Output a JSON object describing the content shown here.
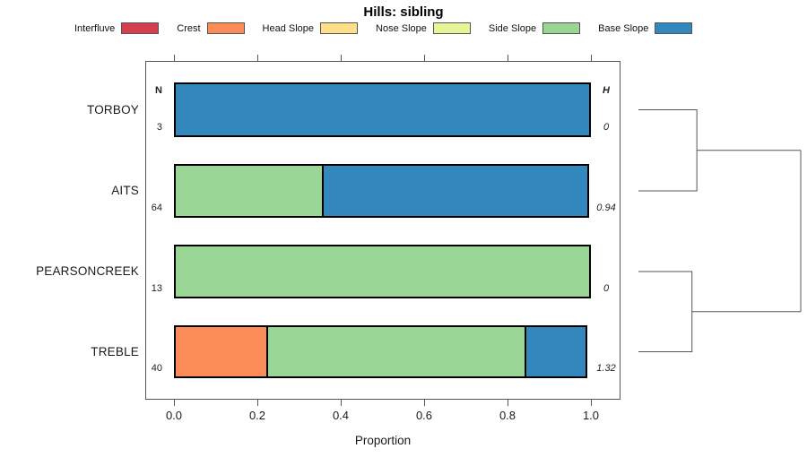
{
  "title": "Hills: sibling",
  "legend": {
    "items": [
      {
        "label": "Interfluve",
        "color": "#D53E4F"
      },
      {
        "label": "Crest",
        "color": "#FC8D59"
      },
      {
        "label": "Head Slope",
        "color": "#FEE08B"
      },
      {
        "label": "Nose Slope",
        "color": "#E6F598"
      },
      {
        "label": "Side Slope",
        "color": "#99D594"
      },
      {
        "label": "Base Slope",
        "color": "#3288BD"
      }
    ]
  },
  "chart_data": {
    "type": "bar",
    "variant": "horizontal-stacked-proportion",
    "title": "Hills: sibling",
    "categories": [
      "TORBOY",
      "AITS",
      "PEARSONCREEK",
      "TREBLE"
    ],
    "series": [
      {
        "name": "Interfluve",
        "color": "#D53E4F",
        "values": [
          0,
          0,
          0,
          0
        ]
      },
      {
        "name": "Crest",
        "color": "#FC8D59",
        "values": [
          0,
          0,
          0,
          0.225
        ]
      },
      {
        "name": "Head Slope",
        "color": "#FEE08B",
        "values": [
          0,
          0,
          0,
          0
        ]
      },
      {
        "name": "Nose Slope",
        "color": "#E6F598",
        "values": [
          0,
          0,
          0,
          0
        ]
      },
      {
        "name": "Side Slope",
        "color": "#99D594",
        "values": [
          0,
          0.36,
          1.0,
          0.625
        ]
      },
      {
        "name": "Base Slope",
        "color": "#3288BD",
        "values": [
          1.0,
          0.64,
          0,
          0.15
        ]
      }
    ],
    "n_header": "N",
    "h_header": "H",
    "n_values": [
      "3",
      "64",
      "13",
      "40"
    ],
    "h_values": [
      "0",
      "0.94",
      "0",
      "1.32"
    ],
    "xlabel": "Proportion",
    "x_ticks": [
      "0.0",
      "0.2",
      "0.4",
      "0.6",
      "0.8",
      "1.0"
    ],
    "xlim": [
      0,
      1
    ],
    "grid": false,
    "legend_position": "top",
    "dendrogram": {
      "leaves": [
        "TORBOY",
        "AITS",
        "PEARSONCREEK",
        "TREBLE"
      ],
      "merges": [
        {
          "children": [
            0,
            1
          ],
          "height": 0.36
        },
        {
          "children": [
            2,
            3
          ],
          "height": 0.33
        }
      ],
      "root_height": 1.0
    }
  }
}
